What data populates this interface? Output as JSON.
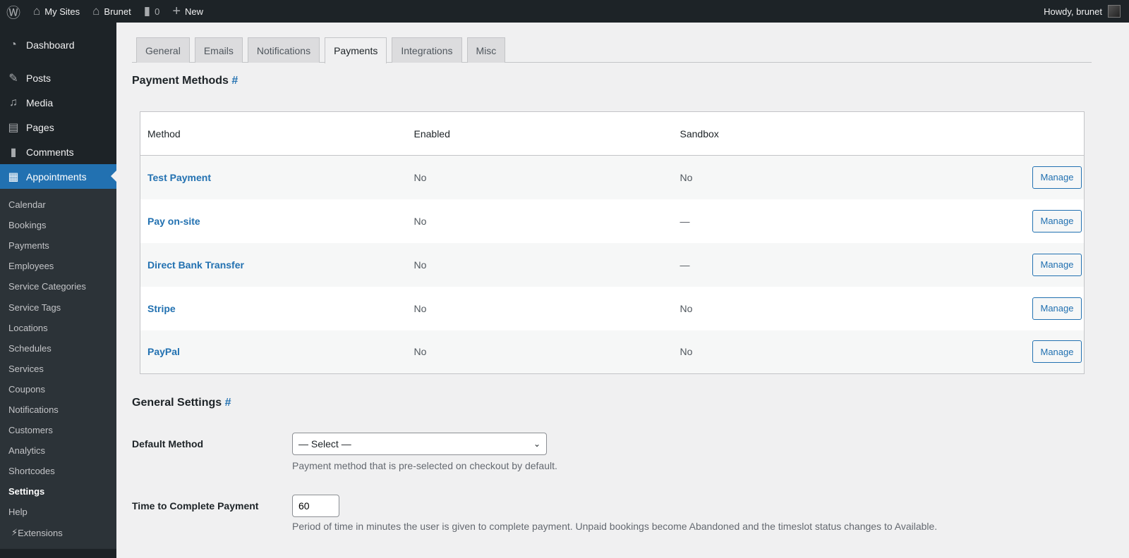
{
  "adminbar": {
    "my_sites": "My Sites",
    "site": "Brunet",
    "comments_count": "0",
    "new": "New",
    "howdy": "Howdy, brunet"
  },
  "sidebar": {
    "items": [
      {
        "label": "Dashboard",
        "icon": "dashboard-icon"
      },
      {
        "label": "Posts",
        "icon": "pin-icon"
      },
      {
        "label": "Media",
        "icon": "media-icon"
      },
      {
        "label": "Pages",
        "icon": "pages-icon"
      },
      {
        "label": "Comments",
        "icon": "comment-icon"
      },
      {
        "label": "Appointments",
        "icon": "calendar-icon"
      }
    ],
    "submenu": [
      "Calendar",
      "Bookings",
      "Payments",
      "Employees",
      "Service Categories",
      "Service Tags",
      "Locations",
      "Schedules",
      "Services",
      "Coupons",
      "Notifications",
      "Customers",
      "Analytics",
      "Shortcodes",
      "Settings",
      "Help",
      "Extensions"
    ],
    "current_sub": "Settings"
  },
  "tabs": [
    "General",
    "Emails",
    "Notifications",
    "Payments",
    "Integrations",
    "Misc"
  ],
  "active_tab": "Payments",
  "payment_methods": {
    "title": "Payment Methods",
    "anchor": "#",
    "columns": [
      "Method",
      "Enabled",
      "Sandbox"
    ],
    "rows": [
      [
        "Test Payment",
        "No",
        "No"
      ],
      [
        "Pay on-site",
        "No",
        "—"
      ],
      [
        "Direct Bank Transfer",
        "No",
        "—"
      ],
      [
        "Stripe",
        "No",
        "No"
      ],
      [
        "PayPal",
        "No",
        "No"
      ]
    ],
    "manage_label": "Manage"
  },
  "general": {
    "title": "General Settings",
    "anchor": "#",
    "default_method_label": "Default Method",
    "default_method_value": "— Select —",
    "default_method_desc": "Payment method that is pre-selected on checkout by default.",
    "time_label": "Time to Complete Payment",
    "time_value": "60",
    "time_desc": "Period of time in minutes the user is given to complete payment. Unpaid bookings become Abandoned and the timeslot status changes to Available."
  }
}
